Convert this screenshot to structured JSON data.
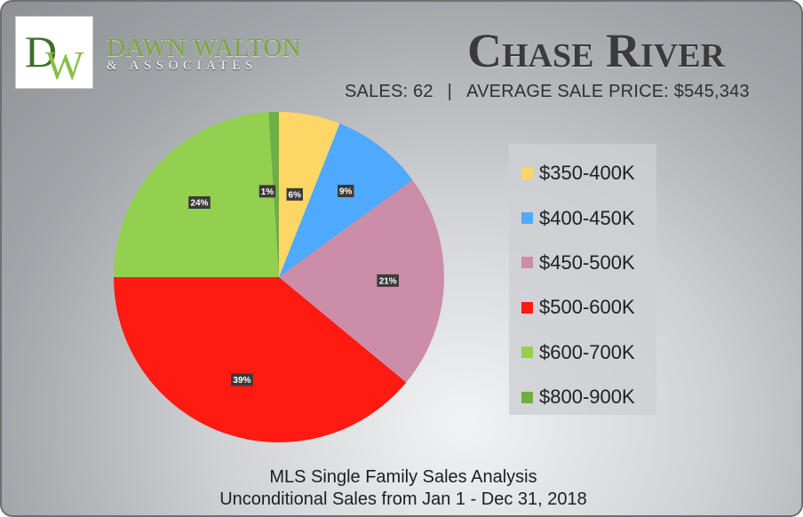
{
  "brand": {
    "logo_monogram": "DW",
    "name": "DAWN WALTON",
    "subtitle": "& ASSOCIATES",
    "colors": {
      "green": "#7aa63d",
      "dark_green": "#3f6e2a"
    }
  },
  "header": {
    "title": "Chase River",
    "sales_text": "SALES: 62",
    "separator": "|",
    "average_price_text": "AVERAGE SALE PRICE: $545,343"
  },
  "chart_data": {
    "type": "pie",
    "start": "top",
    "direction": "clockwise",
    "legend_placement": "right",
    "slices": [
      {
        "label": "$350-400K",
        "value": 6,
        "display": "6%",
        "color": "#fdd666"
      },
      {
        "label": "$400-450K",
        "value": 9,
        "display": "9%",
        "color": "#4fa9ff"
      },
      {
        "label": "$450-500K",
        "value": 21,
        "display": "21%",
        "color": "#cb8da7"
      },
      {
        "label": "$500-600K",
        "value": 39,
        "display": "39%",
        "color": "#ff1a12"
      },
      {
        "label": "$600-700K",
        "value": 24,
        "display": "24%",
        "color": "#93d04f"
      },
      {
        "label": "$800-900K",
        "value": 1,
        "display": "1%",
        "color": "#6fae45"
      }
    ]
  },
  "footer": {
    "line1": "MLS Single Family Sales Analysis",
    "line2": "Unconditional Sales from Jan 1 - Dec 31, 2018"
  }
}
